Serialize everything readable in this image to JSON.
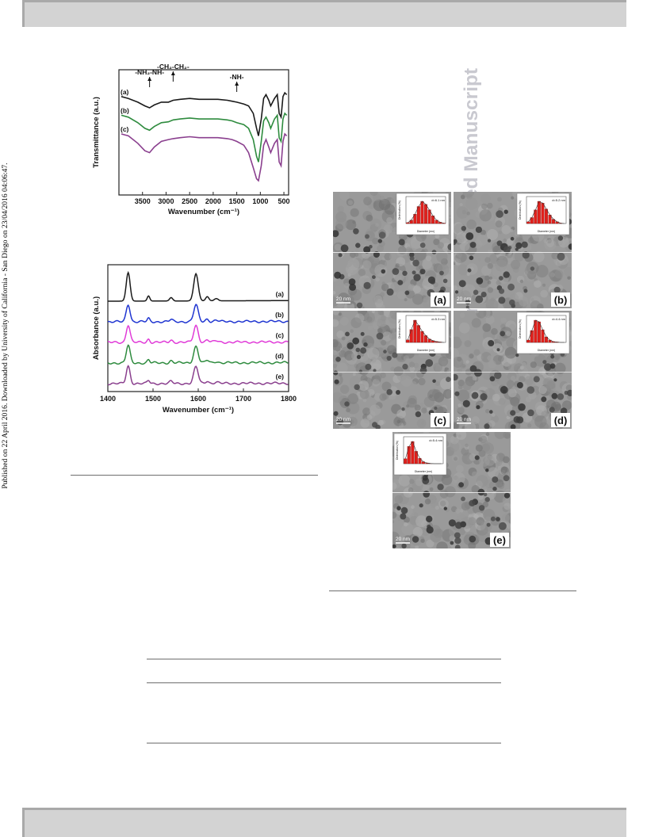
{
  "side_note": "Published on 22 April 2016. Downloaded by University of California - San Diego on 23/04/2016 04:06:47.",
  "watermark": "RSC Advances Accepted Manuscript",
  "chart_data": [
    {
      "type": "line",
      "xlabel": "Wavenumber (cm⁻¹)",
      "ylabel": "Transmittance (a.u.)",
      "xlim": [
        4000,
        400
      ],
      "x_ticks": [
        3500,
        3000,
        2500,
        2000,
        1500,
        1000,
        500
      ],
      "series": [
        {
          "name": "(a)",
          "color": "#1a1a1a",
          "x": [
            3950,
            3800,
            3600,
            3450,
            3350,
            3250,
            3100,
            2950,
            2850,
            2700,
            2500,
            2300,
            2100,
            1900,
            1700,
            1600,
            1500,
            1350,
            1250,
            1150,
            1080,
            1040,
            980,
            930,
            880,
            820,
            780,
            700,
            640,
            600,
            560,
            520,
            480,
            440
          ],
          "y": [
            0.9,
            0.88,
            0.84,
            0.8,
            0.78,
            0.81,
            0.84,
            0.84,
            0.86,
            0.87,
            0.88,
            0.87,
            0.87,
            0.87,
            0.86,
            0.85,
            0.84,
            0.82,
            0.8,
            0.72,
            0.56,
            0.48,
            0.66,
            0.88,
            0.92,
            0.86,
            0.8,
            0.88,
            0.92,
            0.72,
            0.68,
            0.9,
            0.94,
            0.92
          ]
        },
        {
          "name": "(b)",
          "color": "#2e8b3e",
          "x": [
            3950,
            3800,
            3600,
            3450,
            3350,
            3250,
            3100,
            2950,
            2850,
            2700,
            2500,
            2300,
            2100,
            1900,
            1700,
            1600,
            1500,
            1350,
            1250,
            1150,
            1080,
            1040,
            980,
            930,
            880,
            820,
            780,
            700,
            640,
            600,
            560,
            520,
            480,
            440
          ],
          "y": [
            0.7,
            0.68,
            0.62,
            0.56,
            0.54,
            0.58,
            0.62,
            0.63,
            0.65,
            0.66,
            0.67,
            0.66,
            0.66,
            0.66,
            0.65,
            0.64,
            0.62,
            0.6,
            0.56,
            0.44,
            0.26,
            0.2,
            0.42,
            0.64,
            0.68,
            0.62,
            0.56,
            0.66,
            0.7,
            0.46,
            0.42,
            0.66,
            0.72,
            0.7
          ]
        },
        {
          "name": "(c)",
          "color": "#8a3f8e",
          "x": [
            3950,
            3800,
            3600,
            3450,
            3350,
            3250,
            3100,
            2950,
            2850,
            2700,
            2500,
            2300,
            2100,
            1900,
            1700,
            1600,
            1500,
            1350,
            1250,
            1150,
            1080,
            1040,
            980,
            930,
            880,
            820,
            780,
            700,
            640,
            600,
            560,
            520,
            480,
            440
          ],
          "y": [
            0.5,
            0.48,
            0.4,
            0.32,
            0.3,
            0.36,
            0.42,
            0.44,
            0.45,
            0.46,
            0.47,
            0.46,
            0.46,
            0.46,
            0.45,
            0.44,
            0.42,
            0.38,
            0.3,
            0.14,
            0.02,
            0.0,
            0.16,
            0.38,
            0.44,
            0.36,
            0.3,
            0.4,
            0.44,
            0.2,
            0.16,
            0.42,
            0.5,
            0.48
          ]
        }
      ],
      "annotations": [
        {
          "label": "-NH₂-NH-",
          "x": 3350
        },
        {
          "label": "-CH₂-CH₂-",
          "x": 2850
        },
        {
          "label": "-NH-",
          "x": 1500
        }
      ],
      "grid": false
    },
    {
      "type": "line",
      "xlabel": "Wavenumber (cm⁻¹)",
      "ylabel": "Absorbance (a.u.)",
      "xlim": [
        1400,
        1800
      ],
      "x_ticks": [
        1400,
        1500,
        1600,
        1700,
        1800
      ],
      "series": [
        {
          "name": "(a)",
          "color": "#1a1a1a"
        },
        {
          "name": "(b)",
          "color": "#1f35d1"
        },
        {
          "name": "(c)",
          "color": "#e03bd8"
        },
        {
          "name": "(d)",
          "color": "#2e8b3e"
        },
        {
          "name": "(e)",
          "color": "#8a3f8e"
        }
      ],
      "peaks": [
        {
          "x": 1445,
          "height": 1.0,
          "width": 6
        },
        {
          "x": 1490,
          "height": 0.18,
          "width": 4
        },
        {
          "x": 1540,
          "height": 0.12,
          "width": 5
        },
        {
          "x": 1595,
          "height": 0.95,
          "width": 7
        },
        {
          "x": 1620,
          "height": 0.15,
          "width": 5
        },
        {
          "x": 1640,
          "height": 0.08,
          "width": 6
        }
      ],
      "grid": false
    }
  ],
  "tem_figure": {
    "scale_bar": "20 nm",
    "panels": [
      {
        "label": "(a)",
        "dist_label": "d=6.1 nm",
        "bars": [
          2,
          8,
          22,
          40,
          52,
          45,
          32,
          18,
          8,
          3,
          1
        ]
      },
      {
        "label": "(b)",
        "dist_label": "d=5.2 nm",
        "bars": [
          4,
          14,
          32,
          52,
          48,
          34,
          20,
          10,
          4,
          1,
          0
        ]
      },
      {
        "label": "(c)",
        "dist_label": "d=5.3 nm",
        "bars": [
          6,
          30,
          52,
          40,
          26,
          16,
          8,
          4,
          2,
          1,
          0
        ]
      },
      {
        "label": "(d)",
        "dist_label": "d=4.4 nm",
        "bars": [
          6,
          30,
          56,
          52,
          32,
          14,
          6,
          2,
          1,
          0,
          0
        ]
      },
      {
        "label": "(e)",
        "dist_label": "d=5.4 nm",
        "bars": [
          20,
          70,
          90,
          50,
          22,
          8,
          3,
          1,
          0,
          0,
          0
        ]
      }
    ],
    "dist_ylabel": "Distribution (%)",
    "dist_xlabel_nm": "Diameter (nm)",
    "dist_xlabel_mn": "Diameter (mn)"
  }
}
